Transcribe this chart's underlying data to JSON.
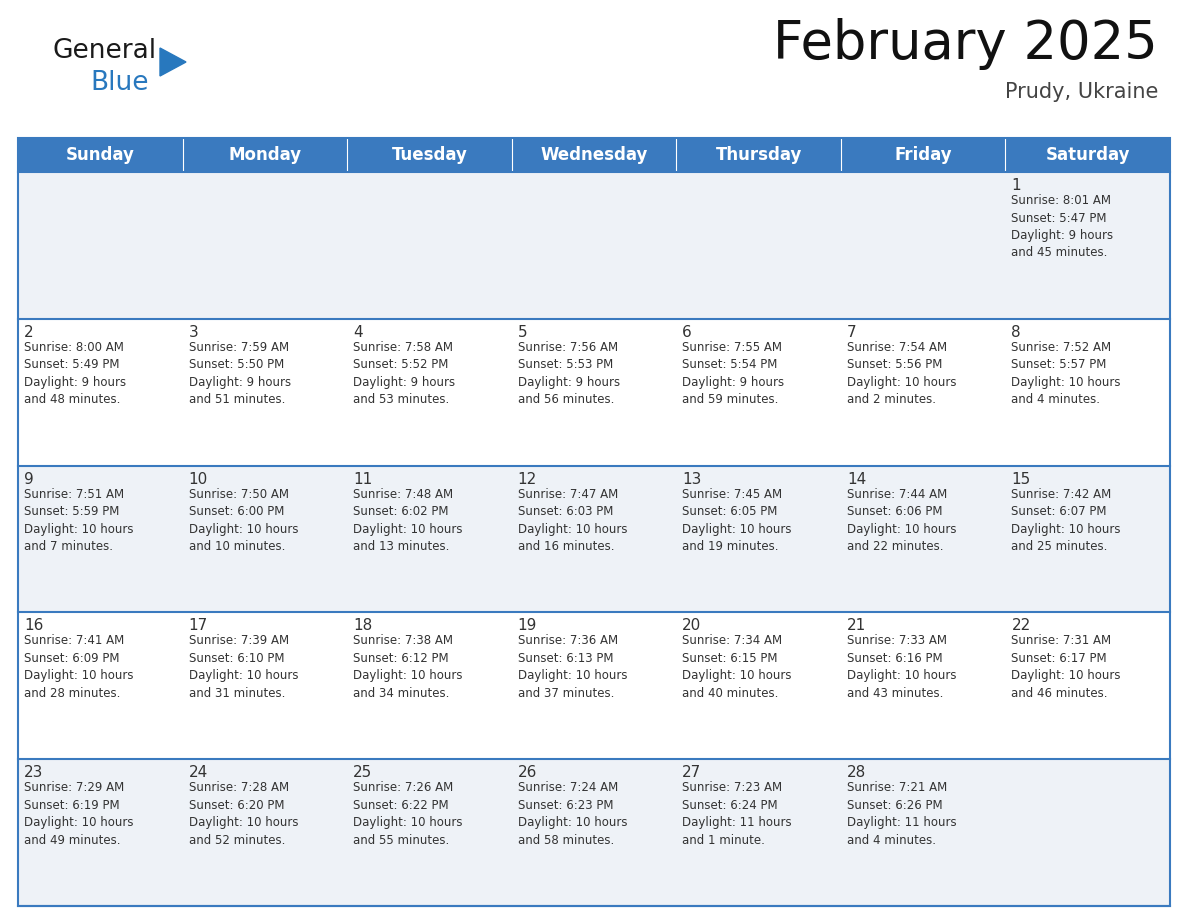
{
  "title": "February 2025",
  "subtitle": "Prudy, Ukraine",
  "header_color": "#3a7abf",
  "header_text_color": "#ffffff",
  "bg_color": "#ffffff",
  "alt_row_color": "#eef2f7",
  "border_color": "#3a7abf",
  "cell_text_color": "#333333",
  "days_of_week": [
    "Sunday",
    "Monday",
    "Tuesday",
    "Wednesday",
    "Thursday",
    "Friday",
    "Saturday"
  ],
  "calendar_data": [
    [
      {
        "day": null,
        "info": ""
      },
      {
        "day": null,
        "info": ""
      },
      {
        "day": null,
        "info": ""
      },
      {
        "day": null,
        "info": ""
      },
      {
        "day": null,
        "info": ""
      },
      {
        "day": null,
        "info": ""
      },
      {
        "day": 1,
        "info": "Sunrise: 8:01 AM\nSunset: 5:47 PM\nDaylight: 9 hours\nand 45 minutes."
      }
    ],
    [
      {
        "day": 2,
        "info": "Sunrise: 8:00 AM\nSunset: 5:49 PM\nDaylight: 9 hours\nand 48 minutes."
      },
      {
        "day": 3,
        "info": "Sunrise: 7:59 AM\nSunset: 5:50 PM\nDaylight: 9 hours\nand 51 minutes."
      },
      {
        "day": 4,
        "info": "Sunrise: 7:58 AM\nSunset: 5:52 PM\nDaylight: 9 hours\nand 53 minutes."
      },
      {
        "day": 5,
        "info": "Sunrise: 7:56 AM\nSunset: 5:53 PM\nDaylight: 9 hours\nand 56 minutes."
      },
      {
        "day": 6,
        "info": "Sunrise: 7:55 AM\nSunset: 5:54 PM\nDaylight: 9 hours\nand 59 minutes."
      },
      {
        "day": 7,
        "info": "Sunrise: 7:54 AM\nSunset: 5:56 PM\nDaylight: 10 hours\nand 2 minutes."
      },
      {
        "day": 8,
        "info": "Sunrise: 7:52 AM\nSunset: 5:57 PM\nDaylight: 10 hours\nand 4 minutes."
      }
    ],
    [
      {
        "day": 9,
        "info": "Sunrise: 7:51 AM\nSunset: 5:59 PM\nDaylight: 10 hours\nand 7 minutes."
      },
      {
        "day": 10,
        "info": "Sunrise: 7:50 AM\nSunset: 6:00 PM\nDaylight: 10 hours\nand 10 minutes."
      },
      {
        "day": 11,
        "info": "Sunrise: 7:48 AM\nSunset: 6:02 PM\nDaylight: 10 hours\nand 13 minutes."
      },
      {
        "day": 12,
        "info": "Sunrise: 7:47 AM\nSunset: 6:03 PM\nDaylight: 10 hours\nand 16 minutes."
      },
      {
        "day": 13,
        "info": "Sunrise: 7:45 AM\nSunset: 6:05 PM\nDaylight: 10 hours\nand 19 minutes."
      },
      {
        "day": 14,
        "info": "Sunrise: 7:44 AM\nSunset: 6:06 PM\nDaylight: 10 hours\nand 22 minutes."
      },
      {
        "day": 15,
        "info": "Sunrise: 7:42 AM\nSunset: 6:07 PM\nDaylight: 10 hours\nand 25 minutes."
      }
    ],
    [
      {
        "day": 16,
        "info": "Sunrise: 7:41 AM\nSunset: 6:09 PM\nDaylight: 10 hours\nand 28 minutes."
      },
      {
        "day": 17,
        "info": "Sunrise: 7:39 AM\nSunset: 6:10 PM\nDaylight: 10 hours\nand 31 minutes."
      },
      {
        "day": 18,
        "info": "Sunrise: 7:38 AM\nSunset: 6:12 PM\nDaylight: 10 hours\nand 34 minutes."
      },
      {
        "day": 19,
        "info": "Sunrise: 7:36 AM\nSunset: 6:13 PM\nDaylight: 10 hours\nand 37 minutes."
      },
      {
        "day": 20,
        "info": "Sunrise: 7:34 AM\nSunset: 6:15 PM\nDaylight: 10 hours\nand 40 minutes."
      },
      {
        "day": 21,
        "info": "Sunrise: 7:33 AM\nSunset: 6:16 PM\nDaylight: 10 hours\nand 43 minutes."
      },
      {
        "day": 22,
        "info": "Sunrise: 7:31 AM\nSunset: 6:17 PM\nDaylight: 10 hours\nand 46 minutes."
      }
    ],
    [
      {
        "day": 23,
        "info": "Sunrise: 7:29 AM\nSunset: 6:19 PM\nDaylight: 10 hours\nand 49 minutes."
      },
      {
        "day": 24,
        "info": "Sunrise: 7:28 AM\nSunset: 6:20 PM\nDaylight: 10 hours\nand 52 minutes."
      },
      {
        "day": 25,
        "info": "Sunrise: 7:26 AM\nSunset: 6:22 PM\nDaylight: 10 hours\nand 55 minutes."
      },
      {
        "day": 26,
        "info": "Sunrise: 7:24 AM\nSunset: 6:23 PM\nDaylight: 10 hours\nand 58 minutes."
      },
      {
        "day": 27,
        "info": "Sunrise: 7:23 AM\nSunset: 6:24 PM\nDaylight: 11 hours\nand 1 minute."
      },
      {
        "day": 28,
        "info": "Sunrise: 7:21 AM\nSunset: 6:26 PM\nDaylight: 11 hours\nand 4 minutes."
      },
      {
        "day": null,
        "info": ""
      }
    ]
  ],
  "logo_color_general": "#1a1a1a",
  "logo_color_blue": "#2878be",
  "logo_triangle_color": "#2878be",
  "title_fontsize": 38,
  "subtitle_fontsize": 15,
  "header_fontsize": 12,
  "day_number_fontsize": 11,
  "cell_info_fontsize": 8.5
}
